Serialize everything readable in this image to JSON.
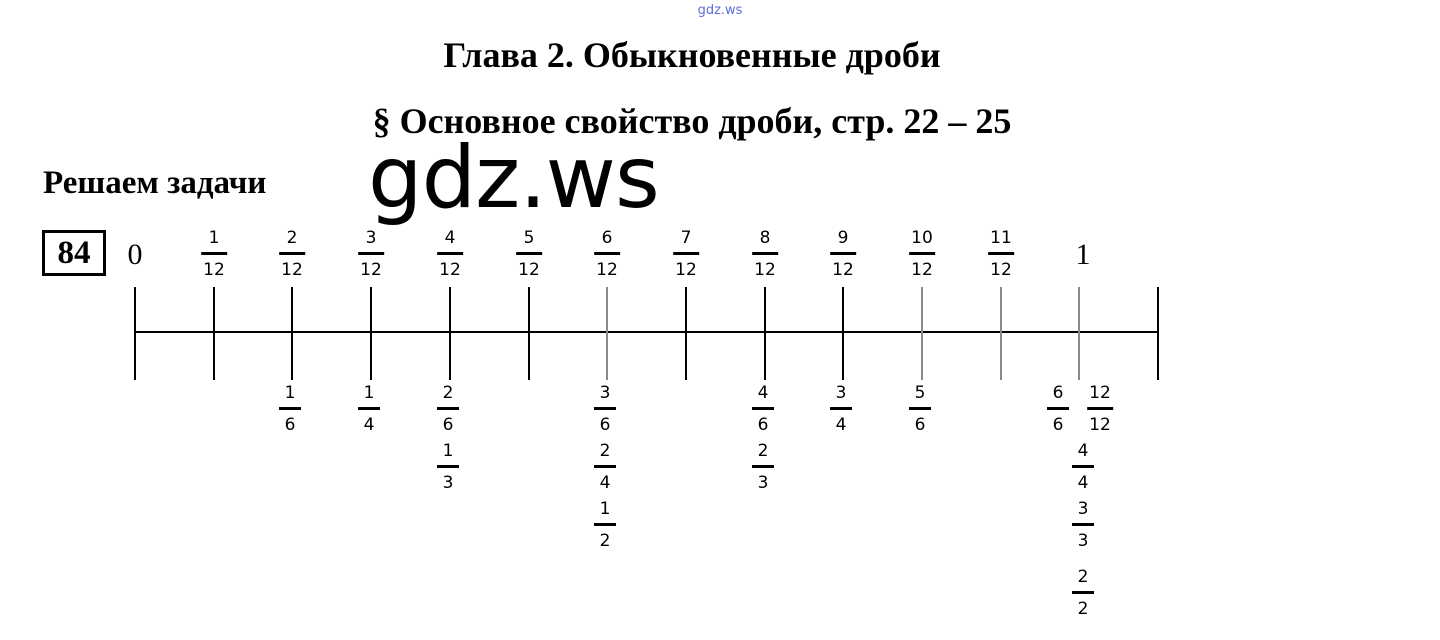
{
  "watermark_top": "gdz.ws",
  "watermark_big": "gdz.ws",
  "chapter_title": "Глава 2. Обыкновенные дроби",
  "section_title": "§ Основное свойство дроби, стр. 22 – 25",
  "subheading": "Решаем задачи",
  "task_number": "84",
  "number_line": {
    "start_label": "0",
    "end_label": "1",
    "top_fractions": [
      {
        "n": "1",
        "d": "12"
      },
      {
        "n": "2",
        "d": "12"
      },
      {
        "n": "3",
        "d": "12"
      },
      {
        "n": "4",
        "d": "12"
      },
      {
        "n": "5",
        "d": "12"
      },
      {
        "n": "6",
        "d": "12"
      },
      {
        "n": "7",
        "d": "12"
      },
      {
        "n": "8",
        "d": "12"
      },
      {
        "n": "9",
        "d": "12"
      },
      {
        "n": "10",
        "d": "12"
      },
      {
        "n": "11",
        "d": "12"
      }
    ],
    "equivalents": [
      {
        "tick": 2,
        "fractions": [
          {
            "n": "1",
            "d": "6"
          }
        ]
      },
      {
        "tick": 3,
        "fractions": [
          {
            "n": "1",
            "d": "4"
          }
        ]
      },
      {
        "tick": 4,
        "fractions": [
          {
            "n": "2",
            "d": "6"
          },
          {
            "n": "1",
            "d": "3"
          }
        ]
      },
      {
        "tick": 6,
        "fractions": [
          {
            "n": "3",
            "d": "6"
          },
          {
            "n": "2",
            "d": "4"
          },
          {
            "n": "1",
            "d": "2"
          }
        ]
      },
      {
        "tick": 8,
        "fractions": [
          {
            "n": "4",
            "d": "6"
          },
          {
            "n": "2",
            "d": "3"
          }
        ]
      },
      {
        "tick": 9,
        "fractions": [
          {
            "n": "3",
            "d": "4"
          }
        ]
      },
      {
        "tick": 10,
        "fractions": [
          {
            "n": "5",
            "d": "6"
          }
        ]
      },
      {
        "tick": 12,
        "fractions": [
          {
            "n": "6",
            "d": "6"
          },
          {
            "n": "12",
            "d": "12"
          },
          {
            "n": "4",
            "d": "4"
          },
          {
            "n": "3",
            "d": "3"
          },
          {
            "n": "2",
            "d": "2"
          }
        ]
      }
    ]
  }
}
